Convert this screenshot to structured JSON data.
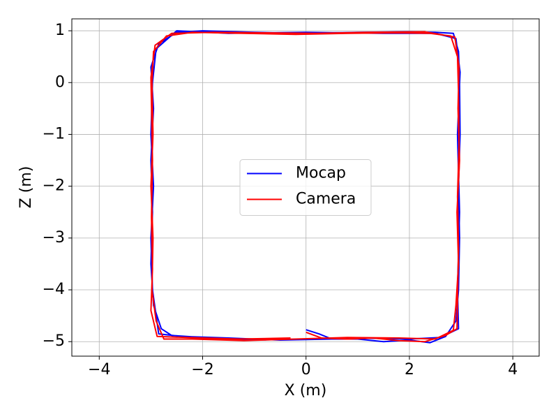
{
  "chart_data": {
    "type": "line",
    "xlabel": "X (m)",
    "ylabel": "Z (m)",
    "xlim": [
      -4.53,
      4.51
    ],
    "ylim": [
      -5.28,
      1.23
    ],
    "xticks": [
      {
        "value": -4,
        "label": "−4"
      },
      {
        "value": -2,
        "label": "−2"
      },
      0,
      2,
      4
    ],
    "yticks": [
      1,
      0,
      {
        "value": -1,
        "label": "−1"
      },
      {
        "value": -2,
        "label": "−2"
      },
      {
        "value": -3,
        "label": "−3"
      },
      {
        "value": -4,
        "label": "−4"
      },
      {
        "value": -5,
        "label": "−5"
      }
    ],
    "grid": true,
    "legend": "center",
    "series": [
      {
        "name": "Mocap",
        "color": "#0000ff",
        "x": [
          0,
          0.25,
          0.5,
          1,
          1.5,
          2,
          2.4,
          2.7,
          2.9,
          2.95,
          2.97,
          2.95,
          2.98,
          2.97,
          2.95,
          2.85,
          2.5,
          2,
          1,
          0,
          -1,
          -2,
          -2.5,
          -2.85,
          -3,
          -2.95,
          -3,
          -2.97,
          -3,
          -2.95,
          -2.8,
          -2.6,
          -2,
          -1,
          0,
          1,
          2,
          2.6,
          2.95,
          2.93,
          2.97,
          2.93,
          2.98,
          2.9,
          2.5,
          1.5,
          0,
          -1.5,
          -2.5,
          -2.9,
          -2.97,
          -3.0,
          -2.95,
          -3.0,
          -2.97,
          -2.85,
          -2.4,
          -1.5,
          -0.5,
          0.5
        ],
        "values": [
          -4.77,
          -4.85,
          -4.95,
          -4.95,
          -5.0,
          -4.97,
          -5.02,
          -4.9,
          -4.6,
          -4.0,
          -3.0,
          -2.0,
          -1.0,
          0,
          0.6,
          0.95,
          0.97,
          0.98,
          0.97,
          0.95,
          0.97,
          1.0,
          0.97,
          0.75,
          0.3,
          -0.5,
          -1.5,
          -2.5,
          -3.5,
          -4.3,
          -4.75,
          -4.88,
          -4.92,
          -4.97,
          -4.95,
          -4.93,
          -4.95,
          -4.92,
          -4.75,
          -4,
          -2.5,
          -1,
          0.2,
          0.85,
          0.95,
          0.95,
          0.97,
          0.95,
          1.0,
          0.65,
          0,
          -1,
          -2,
          -3,
          -4,
          -4.85,
          -4.9,
          -4.93,
          -4.97,
          -4.95
        ]
      },
      {
        "name": "Camera",
        "color": "#ff0000",
        "x": [
          0,
          0.3,
          0.8,
          1.3,
          1.8,
          2.3,
          2.7,
          2.92,
          2.93,
          2.95,
          2.93,
          2.96,
          2.95,
          2.93,
          2.8,
          2.4,
          1.8,
          0.8,
          -0.2,
          -1.2,
          -2.2,
          -2.7,
          -2.95,
          -2.98,
          -2.96,
          -3.0,
          -2.96,
          -2.98,
          -2.9,
          -2.75,
          -2.2,
          -1.2,
          -0.2,
          0.8,
          1.8,
          2.5,
          2.85,
          2.9,
          2.95,
          2.92,
          2.97,
          2.94,
          2.96,
          2.88,
          2.3,
          1.2,
          0.2,
          -0.8,
          -1.8,
          -2.6,
          -2.92,
          -3.0,
          -2.97,
          -2.99,
          -2.97,
          -3.0,
          -2.88,
          -2.3,
          -1.3,
          -0.3
        ],
        "values": [
          -4.82,
          -4.93,
          -4.95,
          -4.93,
          -4.98,
          -5.0,
          -4.88,
          -4.75,
          -4.2,
          -3.2,
          -2.2,
          -1.2,
          -0.2,
          0.5,
          0.9,
          0.95,
          0.96,
          0.95,
          0.93,
          0.95,
          0.97,
          0.9,
          0.6,
          0,
          -1,
          -2,
          -3,
          -4,
          -4.6,
          -4.95,
          -4.95,
          -4.98,
          -4.95,
          -4.92,
          -4.93,
          -4.95,
          -4.78,
          -4.3,
          -3.5,
          -2.5,
          -1.5,
          -0.5,
          0.3,
          0.88,
          0.98,
          0.97,
          0.95,
          0.96,
          0.97,
          0.95,
          0.72,
          0.1,
          -1.5,
          -2.6,
          -3.6,
          -4.4,
          -4.9,
          -4.92,
          -4.95,
          -4.93
        ]
      }
    ]
  }
}
